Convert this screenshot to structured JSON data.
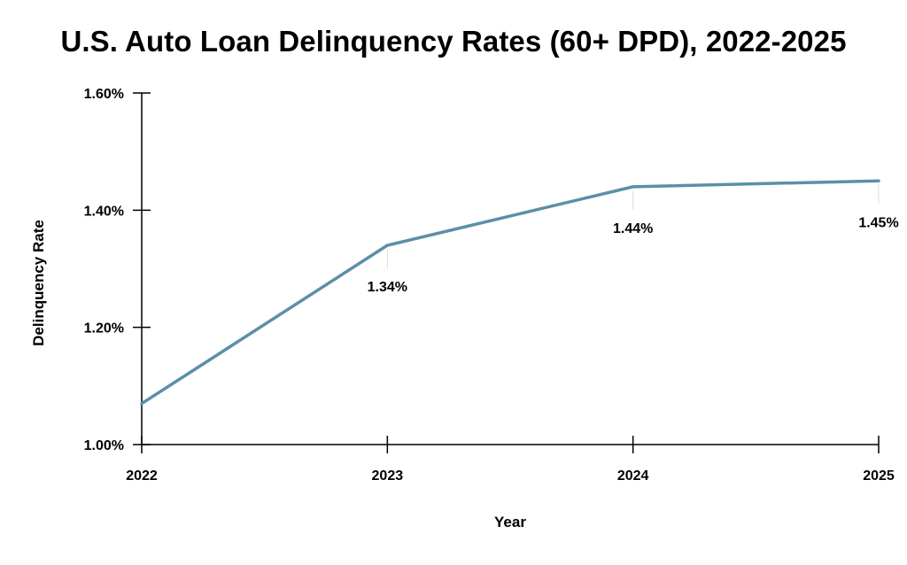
{
  "chart_data": {
    "type": "line",
    "title": "U.S. Auto Loan Delinquency Rates (60+ DPD), 2022-2025",
    "xlabel": "Year",
    "ylabel": "Delinquency Rate",
    "x": [
      "2022",
      "2023",
      "2024",
      "2025"
    ],
    "series": [
      {
        "values": [
          1.07,
          1.34,
          1.44,
          1.45
        ]
      }
    ],
    "data_labels": [
      null,
      "1.34%",
      "1.44%",
      "1.45%"
    ],
    "ylim": [
      1.0,
      1.6
    ],
    "y_ticks": [
      1.0,
      1.2,
      1.4,
      1.6
    ],
    "y_tick_labels": [
      "1.00%",
      "1.20%",
      "1.40%",
      "1.60%"
    ],
    "grid": false,
    "legend": "none",
    "line_color": "#5b8fa8"
  }
}
